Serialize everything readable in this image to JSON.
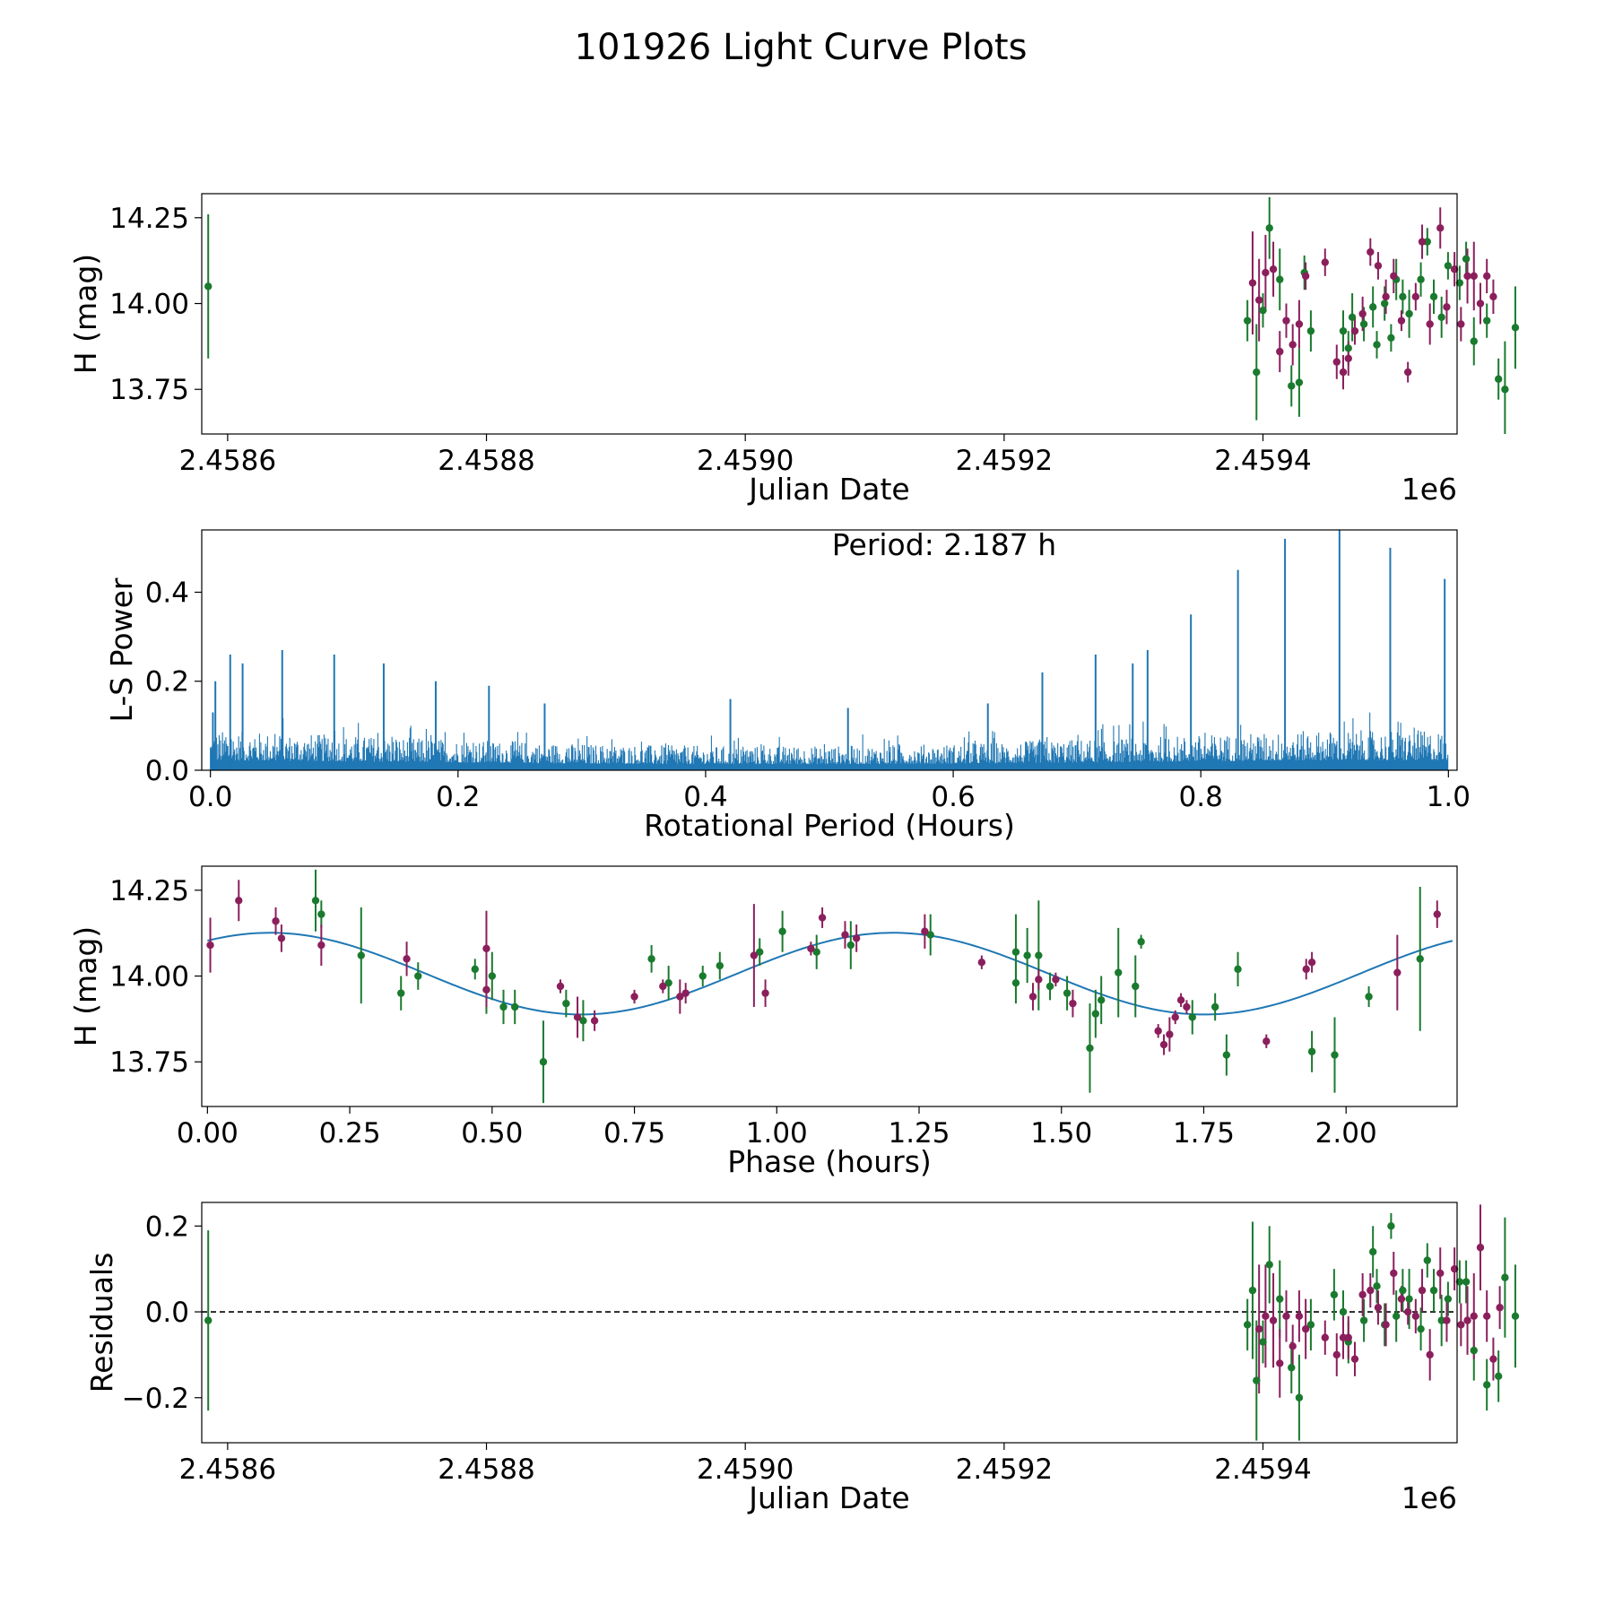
{
  "figure": {
    "title": "101926 Light Curve Plots",
    "colors": {
      "green": "#1a7a2e",
      "purple": "#8b1f5c",
      "blue": "#1f77b4",
      "black": "#000000"
    }
  },
  "chart_data": [
    {
      "id": "raw",
      "type": "scatter",
      "title": "",
      "xlabel": "Julian Date",
      "ylabel": "H (mag)",
      "x_offset_label": "1e6",
      "xlim": [
        2.45858,
        2.45955
      ],
      "ylim": [
        13.62,
        14.32
      ],
      "xticks": [
        2.4586,
        2.4588,
        2.459,
        2.4592,
        2.4594
      ],
      "xtick_labels": [
        "2.4586",
        "2.4588",
        "2.4590",
        "2.4592",
        "2.4594"
      ],
      "yticks": [
        13.75,
        14.0,
        14.25
      ],
      "ytick_labels": [
        "13.75",
        "14.00",
        "14.25"
      ],
      "series": [
        {
          "name": "green filter",
          "color": "#1a7a2e",
          "x": [
            2.458585,
            2.459388,
            2.459395,
            2.4594,
            2.459405,
            2.459413,
            2.459422,
            2.459428,
            2.459432,
            2.459437,
            2.459462,
            2.459466,
            2.459469,
            2.459478,
            2.459485,
            2.459488,
            2.459494,
            2.459499,
            2.459503,
            2.459508,
            2.459513,
            2.459522,
            2.459527,
            2.459532,
            2.459538,
            2.459543,
            2.459552,
            2.459557,
            2.459563,
            2.459573,
            2.459582,
            2.459587,
            2.459595
          ],
          "y": [
            14.05,
            13.95,
            13.8,
            13.98,
            14.22,
            14.07,
            13.76,
            13.77,
            14.09,
            13.92,
            13.92,
            13.87,
            13.96,
            13.94,
            13.99,
            13.88,
            14.0,
            13.9,
            14.07,
            14.02,
            13.97,
            14.07,
            14.18,
            14.02,
            13.96,
            14.11,
            14.06,
            14.13,
            13.89,
            13.95,
            13.78,
            13.75,
            13.93
          ],
          "yerr": [
            0.21,
            0.06,
            0.14,
            0.05,
            0.09,
            0.09,
            0.06,
            0.1,
            0.05,
            0.06,
            0.06,
            0.05,
            0.07,
            0.05,
            0.06,
            0.04,
            0.05,
            0.04,
            0.06,
            0.05,
            0.07,
            0.05,
            0.04,
            0.05,
            0.06,
            0.04,
            0.05,
            0.05,
            0.07,
            0.05,
            0.06,
            0.14,
            0.12
          ]
        },
        {
          "name": "purple filter",
          "color": "#8b1f5c",
          "x": [
            2.459392,
            2.459397,
            2.459402,
            2.459408,
            2.459413,
            2.459418,
            2.459423,
            2.459428,
            2.459433,
            2.459448,
            2.459457,
            2.459462,
            2.459466,
            2.459471,
            2.459477,
            2.459483,
            2.459489,
            2.459495,
            2.459501,
            2.459507,
            2.459512,
            2.459518,
            2.459523,
            2.459529,
            2.459537,
            2.459542,
            2.459548,
            2.459553,
            2.459558,
            2.459563,
            2.459568,
            2.459573,
            2.459578
          ],
          "y": [
            14.06,
            14.01,
            14.09,
            14.1,
            13.86,
            13.95,
            13.88,
            13.94,
            14.08,
            14.12,
            13.83,
            13.8,
            13.84,
            13.92,
            13.97,
            14.15,
            14.11,
            14.02,
            14.08,
            13.95,
            13.8,
            14.02,
            14.18,
            13.94,
            14.22,
            13.99,
            14.1,
            13.94,
            14.08,
            14.08,
            14.0,
            14.08,
            14.02
          ],
          "yerr": [
            0.15,
            0.12,
            0.11,
            0.08,
            0.06,
            0.05,
            0.06,
            0.07,
            0.04,
            0.04,
            0.05,
            0.05,
            0.05,
            0.04,
            0.05,
            0.04,
            0.04,
            0.05,
            0.05,
            0.03,
            0.03,
            0.04,
            0.05,
            0.06,
            0.06,
            0.05,
            0.05,
            0.05,
            0.08,
            0.1,
            0.06,
            0.05,
            0.05
          ]
        }
      ]
    },
    {
      "id": "periodogram",
      "type": "line",
      "title": "",
      "annotation": "Period: 2.187 h",
      "xlabel": "Rotational Period (Hours)",
      "ylabel": "L-S Power",
      "xlim": [
        -0.007,
        1.007
      ],
      "ylim": [
        0,
        0.54
      ],
      "xticks": [
        0,
        0.2,
        0.4,
        0.6,
        0.8,
        1.0
      ],
      "xtick_labels": [
        "0.0",
        "0.2",
        "0.4",
        "0.6",
        "0.8",
        "1.0"
      ],
      "yticks": [
        0,
        0.2,
        0.4
      ],
      "ytick_labels": [
        "0.0",
        "0.2",
        "0.4"
      ],
      "series": [
        {
          "name": "L-S power",
          "color": "#1f77b4",
          "noise_envelope": {
            "x": [
              0.0,
              0.05,
              0.1,
              0.2,
              0.3,
              0.4,
              0.5,
              0.6,
              0.7,
              0.8,
              0.9,
              1.0
            ],
            "y": [
              0.09,
              0.085,
              0.08,
              0.07,
              0.06,
              0.055,
              0.055,
              0.06,
              0.07,
              0.08,
              0.09,
              0.09
            ]
          },
          "peaks": {
            "x": [
              0.002,
              0.004,
              0.016,
              0.026,
              0.058,
              0.1,
              0.14,
              0.182,
              0.225,
              0.27,
              0.42,
              0.515,
              0.628,
              0.672,
              0.715,
              0.745,
              0.757,
              0.792,
              0.83,
              0.868,
              0.912,
              0.953,
              0.997
            ],
            "y": [
              0.13,
              0.2,
              0.26,
              0.24,
              0.27,
              0.26,
              0.24,
              0.2,
              0.19,
              0.15,
              0.16,
              0.14,
              0.15,
              0.22,
              0.26,
              0.24,
              0.27,
              0.35,
              0.45,
              0.52,
              0.54,
              0.5,
              0.43
            ]
          }
        }
      ]
    },
    {
      "id": "phased",
      "type": "scatter",
      "title": "",
      "xlabel": "Phase (hours)",
      "ylabel": "H (mag)",
      "xlim": [
        -0.01,
        2.195
      ],
      "ylim": [
        13.62,
        14.32
      ],
      "xticks": [
        0,
        0.25,
        0.5,
        0.75,
        1.0,
        1.25,
        1.5,
        1.75,
        2.0
      ],
      "xtick_labels": [
        "0.00",
        "0.25",
        "0.50",
        "0.75",
        "1.00",
        "1.25",
        "1.50",
        "1.75",
        "2.00"
      ],
      "yticks": [
        13.75,
        14.0,
        14.25
      ],
      "ytick_labels": [
        "13.75",
        "14.00",
        "14.25"
      ],
      "fit": {
        "name": "sinusoid fit",
        "color": "#1f77b4",
        "mean": 14.007,
        "amplitude": 0.119,
        "period_hours": 1.094,
        "peak_phase_hours": 0.11,
        "x_range": [
          0,
          2.187
        ]
      },
      "series": [
        {
          "name": "green filter",
          "color": "#1a7a2e",
          "x": [
            0.19,
            0.2,
            0.27,
            0.34,
            0.37,
            0.47,
            0.49,
            0.5,
            0.52,
            0.54,
            0.59,
            0.63,
            0.66,
            0.78,
            0.81,
            0.87,
            0.9,
            0.97,
            1.01,
            1.07,
            1.13,
            1.27,
            1.42,
            1.42,
            1.44,
            1.46,
            1.48,
            1.51,
            1.55,
            1.56,
            1.57,
            1.6,
            1.63,
            1.64,
            1.73,
            1.77,
            1.79,
            1.81,
            1.94,
            1.98,
            2.04,
            2.13
          ],
          "y": [
            14.22,
            14.18,
            14.06,
            13.95,
            14.0,
            14.02,
            13.96,
            14.0,
            13.91,
            13.91,
            13.75,
            13.92,
            13.87,
            14.05,
            13.98,
            14.0,
            14.03,
            14.07,
            14.13,
            14.07,
            14.09,
            14.12,
            13.98,
            14.07,
            14.06,
            14.06,
            13.97,
            13.95,
            13.79,
            13.89,
            13.93,
            14.01,
            13.97,
            14.1,
            13.88,
            13.91,
            13.77,
            14.02,
            13.78,
            13.77,
            13.94,
            14.05
          ],
          "yerr": [
            0.09,
            0.04,
            0.14,
            0.05,
            0.04,
            0.03,
            0.07,
            0.07,
            0.05,
            0.05,
            0.12,
            0.04,
            0.06,
            0.04,
            0.05,
            0.03,
            0.04,
            0.04,
            0.06,
            0.05,
            0.07,
            0.06,
            0.06,
            0.11,
            0.08,
            0.16,
            0.04,
            0.05,
            0.13,
            0.07,
            0.07,
            0.13,
            0.09,
            0.02,
            0.05,
            0.04,
            0.06,
            0.05,
            0.06,
            0.11,
            0.03,
            0.21
          ]
        },
        {
          "name": "purple filter",
          "color": "#8b1f5c",
          "x": [
            0.005,
            0.055,
            0.12,
            0.13,
            0.2,
            0.35,
            0.49,
            0.49,
            0.62,
            0.65,
            0.68,
            0.75,
            0.8,
            0.83,
            0.84,
            0.96,
            0.98,
            1.06,
            1.08,
            1.12,
            1.14,
            1.26,
            1.36,
            1.45,
            1.46,
            1.49,
            1.52,
            1.67,
            1.68,
            1.69,
            1.7,
            1.71,
            1.72,
            1.86,
            1.93,
            1.94,
            2.09,
            2.16
          ],
          "y": [
            14.09,
            14.22,
            14.16,
            14.11,
            14.09,
            14.05,
            14.08,
            13.96,
            13.97,
            13.88,
            13.87,
            13.94,
            13.97,
            13.94,
            13.95,
            14.06,
            13.95,
            14.08,
            14.17,
            14.12,
            14.11,
            14.13,
            14.04,
            13.94,
            13.99,
            13.99,
            13.92,
            13.84,
            13.8,
            13.83,
            13.88,
            13.93,
            13.91,
            13.81,
            14.02,
            14.04,
            14.01,
            14.18
          ],
          "yerr": [
            0.08,
            0.06,
            0.04,
            0.04,
            0.06,
            0.05,
            0.11,
            0.05,
            0.02,
            0.06,
            0.03,
            0.02,
            0.02,
            0.05,
            0.03,
            0.15,
            0.04,
            0.02,
            0.03,
            0.04,
            0.04,
            0.05,
            0.02,
            0.04,
            0.03,
            0.02,
            0.04,
            0.02,
            0.03,
            0.05,
            0.02,
            0.02,
            0.02,
            0.02,
            0.03,
            0.03,
            0.11,
            0.04
          ]
        }
      ]
    },
    {
      "id": "residuals",
      "type": "scatter",
      "title": "",
      "xlabel": "Julian Date",
      "ylabel": "Residuals",
      "x_offset_label": "1e6",
      "xlim": [
        2.45858,
        2.45955
      ],
      "ylim": [
        -0.305,
        0.255
      ],
      "xticks": [
        2.4586,
        2.4588,
        2.459,
        2.4592,
        2.4594
      ],
      "xtick_labels": [
        "2.4586",
        "2.4588",
        "2.4590",
        "2.4592",
        "2.4594"
      ],
      "yticks": [
        -0.2,
        0.0,
        0.2
      ],
      "ytick_labels": [
        "−0.2",
        "0.0",
        "0.2"
      ],
      "zero_line": 0,
      "series": [
        {
          "name": "green filter",
          "color": "#1a7a2e",
          "x": [
            2.458585,
            2.459388,
            2.459392,
            2.459395,
            2.4594,
            2.459405,
            2.459413,
            2.459422,
            2.459428,
            2.459437,
            2.459455,
            2.459462,
            2.459466,
            2.459478,
            2.459485,
            2.459488,
            2.459494,
            2.459499,
            2.459503,
            2.459508,
            2.459513,
            2.459522,
            2.459527,
            2.459532,
            2.459538,
            2.459543,
            2.459552,
            2.459557,
            2.459563,
            2.459573,
            2.459582,
            2.459587,
            2.459595
          ],
          "y": [
            -0.02,
            -0.03,
            0.05,
            -0.16,
            -0.07,
            0.11,
            0.03,
            -0.13,
            -0.2,
            -0.03,
            0.04,
            0.0,
            -0.07,
            -0.02,
            0.14,
            0.06,
            -0.03,
            0.2,
            -0.01,
            0.05,
            0.03,
            -0.04,
            0.12,
            0.05,
            -0.02,
            0.03,
            0.07,
            0.07,
            -0.09,
            -0.17,
            -0.15,
            0.08,
            -0.01
          ],
          "yerr": [
            0.21,
            0.06,
            0.16,
            0.14,
            0.05,
            0.09,
            0.09,
            0.06,
            0.1,
            0.06,
            0.06,
            0.05,
            0.05,
            0.05,
            0.06,
            0.04,
            0.05,
            0.03,
            0.06,
            0.05,
            0.07,
            0.05,
            0.04,
            0.05,
            0.06,
            0.04,
            0.05,
            0.05,
            0.07,
            0.06,
            0.06,
            0.14,
            0.12
          ]
        },
        {
          "name": "purple filter",
          "color": "#8b1f5c",
          "x": [
            2.459397,
            2.459402,
            2.459408,
            2.459413,
            2.459418,
            2.459423,
            2.459428,
            2.459433,
            2.459448,
            2.459457,
            2.459462,
            2.459466,
            2.459471,
            2.459477,
            2.459483,
            2.459489,
            2.459495,
            2.459501,
            2.459507,
            2.459512,
            2.459518,
            2.459523,
            2.459529,
            2.459537,
            2.459542,
            2.459548,
            2.459553,
            2.459558,
            2.459563,
            2.459568,
            2.459573,
            2.459578,
            2.459583
          ],
          "y": [
            -0.04,
            -0.01,
            -0.02,
            -0.12,
            -0.01,
            -0.08,
            -0.01,
            -0.04,
            -0.06,
            -0.1,
            -0.06,
            -0.06,
            -0.11,
            0.04,
            0.05,
            0.01,
            -0.03,
            0.09,
            0.03,
            0.0,
            -0.01,
            0.05,
            -0.1,
            0.09,
            -0.02,
            0.1,
            -0.03,
            -0.02,
            -0.01,
            0.15,
            -0.01,
            -0.11,
            0.01
          ],
          "yerr": [
            0.15,
            0.12,
            0.11,
            0.08,
            0.06,
            0.05,
            0.06,
            0.07,
            0.04,
            0.05,
            0.05,
            0.05,
            0.04,
            0.05,
            0.04,
            0.04,
            0.05,
            0.05,
            0.03,
            0.03,
            0.04,
            0.05,
            0.06,
            0.06,
            0.05,
            0.05,
            0.05,
            0.08,
            0.1,
            0.1,
            0.06,
            0.05,
            0.05
          ]
        }
      ]
    }
  ]
}
